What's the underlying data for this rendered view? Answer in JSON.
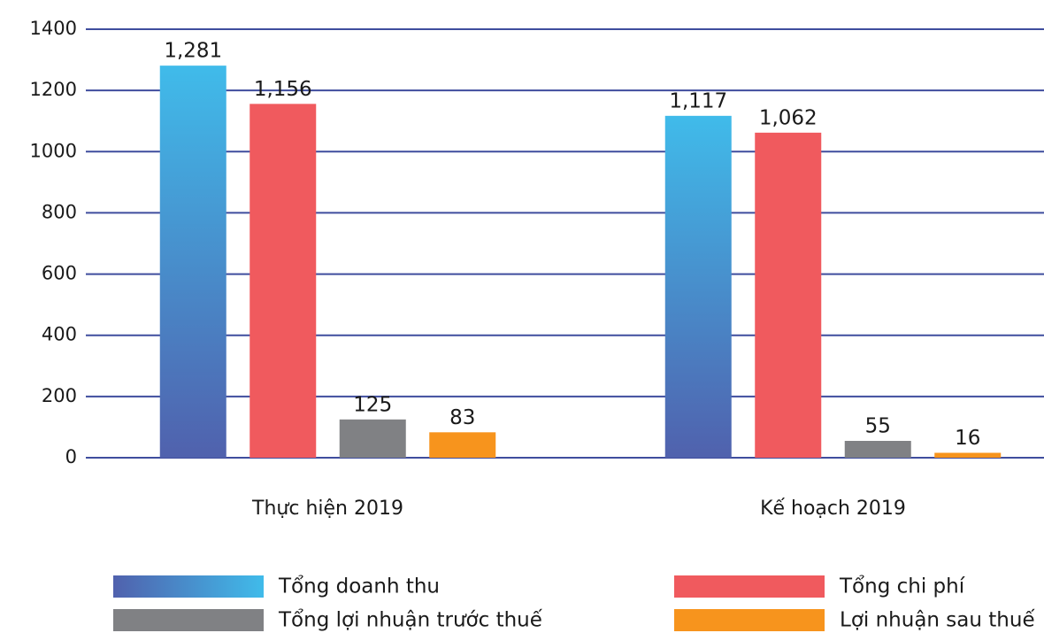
{
  "chart_data": {
    "type": "bar",
    "categories": [
      "Thực hiện 2019",
      "Kế hoạch 2019"
    ],
    "series": [
      {
        "name": "Tổng doanh thu",
        "color": [
          "#5061ad",
          "#40bbea"
        ],
        "values": [
          1281,
          1117
        ],
        "value_labels": [
          "1,281",
          "1,117"
        ]
      },
      {
        "name": "Tổng chi phí",
        "color": "#f05a5e",
        "values": [
          1156,
          1062
        ],
        "value_labels": [
          "1,156",
          "1,062"
        ]
      },
      {
        "name": "Tổng lợi nhuận trước thuế",
        "color": "#808184",
        "values": [
          125,
          55
        ]
      },
      {
        "name": "Lợi nhuận sau thuế",
        "color": "#f7941d",
        "values": [
          83,
          16
        ]
      }
    ],
    "ylim": [
      0,
      1400
    ],
    "yticks": [
      0,
      200,
      400,
      600,
      800,
      1000,
      1200,
      1400
    ],
    "grid": true,
    "legend": "bottom"
  }
}
